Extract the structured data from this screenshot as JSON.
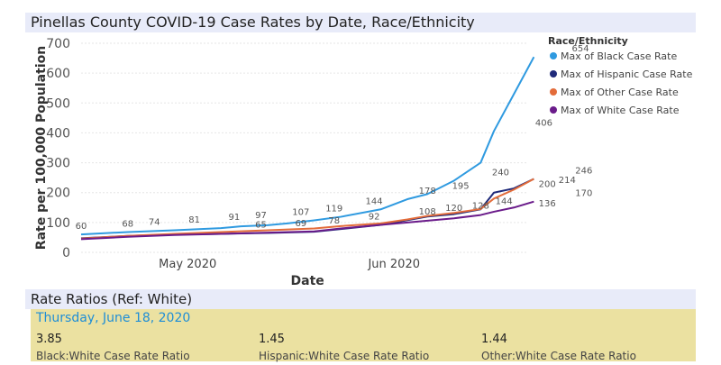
{
  "chart_data": {
    "type": "line",
    "title": "Pinellas County COVID-19 Case Rates by Date, Race/Ethnicity",
    "xlabel": "Date",
    "ylabel": "Rate per 100,000 Population",
    "ylim": [
      0,
      700
    ],
    "yticks": [
      0,
      100,
      200,
      300,
      400,
      500,
      600,
      700
    ],
    "xticks": [
      {
        "day": 16,
        "label": "May 2020"
      },
      {
        "day": 47,
        "label": "Jun 2020"
      }
    ],
    "x_day_range": [
      0,
      67
    ],
    "legend_title": "Race/Ethnicity",
    "series": [
      {
        "name": "Max of Black Case Rate",
        "color": "#2f9ae0",
        "x": [
          0,
          7,
          14,
          21,
          24,
          28,
          31,
          35,
          39,
          45,
          49,
          52,
          56,
          60,
          62,
          65,
          68
        ],
        "values": [
          60,
          68,
          74,
          81,
          87,
          91,
          97,
          107,
          119,
          144,
          178,
          195,
          240,
          300,
          406,
          530,
          654
        ]
      },
      {
        "name": "Max of Hispanic Case Rate",
        "color": "#1f2a7a",
        "x": [
          0,
          7,
          14,
          21,
          28,
          35,
          39,
          45,
          49,
          52,
          56,
          60,
          62,
          65,
          68
        ],
        "values": [
          47,
          55,
          60,
          62,
          65,
          69,
          78,
          92,
          108,
          120,
          128,
          144,
          200,
          214,
          246
        ]
      },
      {
        "name": "Max of Other Case Rate",
        "color": "#e36c3a",
        "x": [
          0,
          7,
          14,
          21,
          28,
          35,
          39,
          45,
          49,
          52,
          56,
          60,
          62,
          65,
          68
        ],
        "values": [
          46,
          55,
          62,
          68,
          74,
          80,
          88,
          97,
          110,
          122,
          132,
          145,
          180,
          210,
          246
        ]
      },
      {
        "name": "Max of White Case Rate",
        "color": "#6a1b8a",
        "x": [
          0,
          7,
          14,
          21,
          28,
          35,
          39,
          45,
          49,
          52,
          56,
          60,
          62,
          65,
          68
        ],
        "values": [
          44,
          52,
          58,
          62,
          66,
          70,
          80,
          92,
          100,
          106,
          114,
          125,
          136,
          150,
          170
        ]
      }
    ],
    "data_labels": [
      {
        "x": 0,
        "y": 60,
        "text": "60"
      },
      {
        "x": 7,
        "y": 68,
        "text": "68"
      },
      {
        "x": 11,
        "y": 74,
        "text": "74"
      },
      {
        "x": 17,
        "y": 81,
        "text": "81"
      },
      {
        "x": 23,
        "y": 91,
        "text": "91"
      },
      {
        "x": 27,
        "y": 97,
        "text": "97"
      },
      {
        "x": 33,
        "y": 107,
        "text": "107"
      },
      {
        "x": 38,
        "y": 119,
        "text": "119"
      },
      {
        "x": 44,
        "y": 144,
        "text": "144"
      },
      {
        "x": 52,
        "y": 178,
        "text": "178"
      },
      {
        "x": 57,
        "y": 195,
        "text": "195"
      },
      {
        "x": 63,
        "y": 240,
        "text": "240"
      },
      {
        "x": 69.5,
        "y": 406,
        "text": "406"
      },
      {
        "x": 75,
        "y": 654,
        "text": "654"
      },
      {
        "x": 27,
        "y": 65,
        "text": "65"
      },
      {
        "x": 33,
        "y": 69,
        "text": "69"
      },
      {
        "x": 38,
        "y": 78,
        "text": "78"
      },
      {
        "x": 44,
        "y": 92,
        "text": "92"
      },
      {
        "x": 52,
        "y": 108,
        "text": "108"
      },
      {
        "x": 56,
        "y": 120,
        "text": "120"
      },
      {
        "x": 60,
        "y": 128,
        "text": "128"
      },
      {
        "x": 63.5,
        "y": 144,
        "text": "144"
      },
      {
        "x": 70,
        "y": 200,
        "text": "200"
      },
      {
        "x": 73,
        "y": 214,
        "text": "214"
      },
      {
        "x": 75.5,
        "y": 246,
        "text": "246"
      },
      {
        "x": 70,
        "y": 136,
        "text": "136"
      },
      {
        "x": 75.5,
        "y": 170,
        "text": "170"
      }
    ]
  },
  "ratios": {
    "title": "Rate Ratios (Ref: White)",
    "date": "Thursday, June 18, 2020",
    "items": [
      {
        "value": "3.85",
        "label": "Black:White Case Rate Ratio"
      },
      {
        "value": "1.45",
        "label": "Hispanic:White Case Rate Ratio"
      },
      {
        "value": "1.44",
        "label": "Other:White Case Rate Ratio"
      }
    ]
  }
}
